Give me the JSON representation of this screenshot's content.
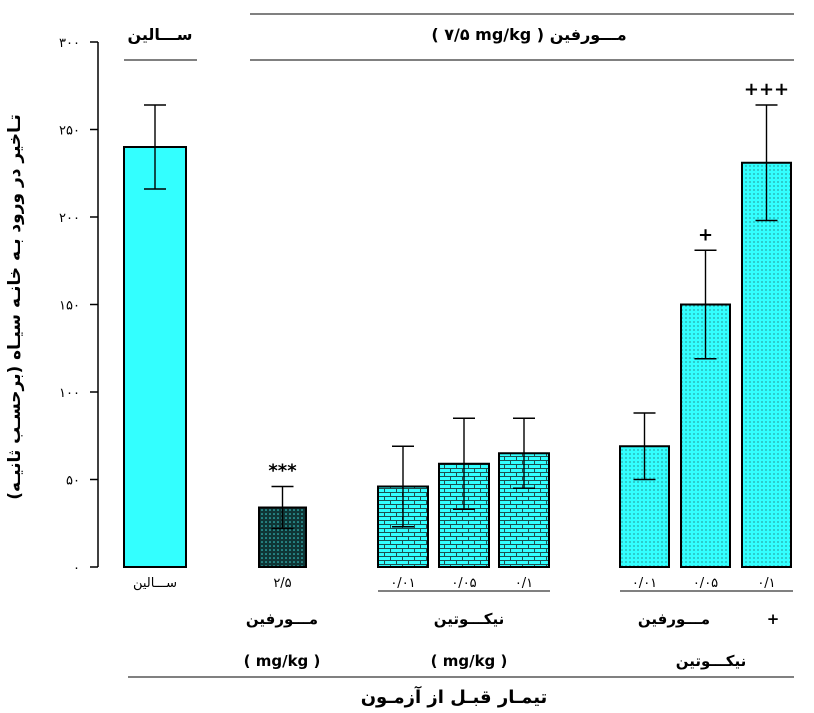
{
  "chart_data": {
    "type": "bar",
    "ylabel": "تـاخیر در ورود بـه خانـه سیـاه (برحسـب ثانیـه)",
    "xlabel": "تیمـار قبـل از آزمـون",
    "ylim": [
      0,
      300
    ],
    "yticks": [
      {
        "value": 0,
        "label": "۰"
      },
      {
        "value": 50,
        "label": "۵۰"
      },
      {
        "value": 100,
        "label": "۱۰۰"
      },
      {
        "value": 150,
        "label": "۱۵۰"
      },
      {
        "value": 200,
        "label": "۲۰۰"
      },
      {
        "value": 250,
        "label": "۲۵۰"
      },
      {
        "value": 300,
        "label": "۳۰۰"
      }
    ],
    "categories": [
      "ســـالین",
      "۲/۵",
      "۰/۰۱",
      "۰/۰۵",
      "۰/۱",
      "۰/۰۱",
      "۰/۰۵",
      "۰/۱"
    ],
    "values": [
      240,
      34,
      46,
      59,
      65,
      69,
      150,
      231
    ],
    "errors": [
      24,
      12,
      23,
      26,
      20,
      19,
      31,
      33
    ],
    "annotations": [
      "",
      "***",
      "",
      "",
      "",
      "",
      "+",
      "+++"
    ],
    "fills": [
      "solid",
      "dots-dark",
      "brick",
      "brick",
      "brick",
      "dots",
      "dots",
      "dots"
    ],
    "headers": {
      "saline": "ســـالین",
      "morphine": "( ۷/۵ mg/kg ) مـــورفین"
    },
    "groups": {
      "morphine": {
        "name": "مـــورفین",
        "unit": "( mg/kg )"
      },
      "nicotine": {
        "name": "نیکـــوتین",
        "unit": "( mg/kg )"
      },
      "combo": {
        "name_1": "مـــورفین",
        "plus": "+",
        "name_2": "نیکـــوتین"
      }
    },
    "grid": false,
    "legend": "none"
  },
  "colors": {
    "bar": "#33FFFF",
    "pattern_ink": "#1D4F4F",
    "dark_bar": "#0F3535",
    "dark_bar_dots": "#40E0E0",
    "ink": "#000000"
  }
}
